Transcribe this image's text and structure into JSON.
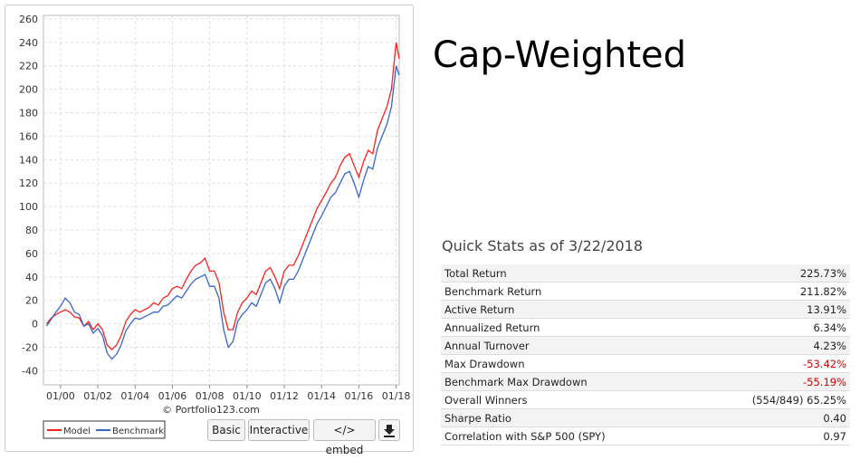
{
  "chart_data": {
    "type": "line",
    "x": [
      "04/99",
      "07/99",
      "10/99",
      "01/00",
      "04/00",
      "07/00",
      "10/00",
      "01/01",
      "04/01",
      "07/01",
      "10/01",
      "01/02",
      "04/02",
      "07/02",
      "10/02",
      "01/03",
      "04/03",
      "07/03",
      "10/03",
      "01/04",
      "04/04",
      "07/04",
      "10/04",
      "01/05",
      "04/05",
      "07/05",
      "10/05",
      "01/06",
      "04/06",
      "07/06",
      "10/06",
      "01/07",
      "04/07",
      "07/07",
      "10/07",
      "01/08",
      "04/08",
      "07/08",
      "10/08",
      "01/09",
      "04/09",
      "07/09",
      "10/09",
      "01/10",
      "04/10",
      "07/10",
      "10/10",
      "01/11",
      "04/11",
      "07/11",
      "10/11",
      "01/12",
      "04/12",
      "07/12",
      "10/12",
      "01/13",
      "04/13",
      "07/13",
      "10/13",
      "01/14",
      "04/14",
      "07/14",
      "10/14",
      "01/15",
      "04/15",
      "07/15",
      "10/15",
      "01/16",
      "04/16",
      "07/16",
      "10/16",
      "01/17",
      "04/17",
      "07/17",
      "10/17",
      "01/18",
      "03/18"
    ],
    "series": [
      {
        "name": "Model",
        "color": "#ff2020",
        "values": [
          0,
          5,
          8,
          10,
          12,
          10,
          6,
          5,
          -2,
          2,
          -5,
          0,
          -5,
          -18,
          -22,
          -18,
          -10,
          2,
          8,
          12,
          10,
          12,
          14,
          18,
          16,
          22,
          24,
          30,
          32,
          30,
          38,
          45,
          50,
          52,
          56,
          45,
          45,
          35,
          10,
          -5,
          -5,
          10,
          18,
          22,
          28,
          25,
          35,
          45,
          48,
          40,
          30,
          45,
          50,
          50,
          58,
          68,
          78,
          88,
          98,
          105,
          112,
          120,
          125,
          135,
          142,
          145,
          135,
          125,
          138,
          148,
          145,
          165,
          175,
          185,
          200,
          240,
          226
        ]
      },
      {
        "name": "Benchmark",
        "color": "#3a66c8",
        "values": [
          -2,
          4,
          10,
          15,
          22,
          18,
          10,
          8,
          -2,
          0,
          -8,
          -4,
          -10,
          -25,
          -30,
          -26,
          -18,
          -6,
          0,
          5,
          4,
          6,
          8,
          10,
          10,
          15,
          16,
          20,
          24,
          22,
          28,
          34,
          38,
          40,
          42,
          32,
          32,
          22,
          -5,
          -20,
          -15,
          2,
          8,
          12,
          18,
          15,
          25,
          35,
          38,
          30,
          18,
          32,
          38,
          38,
          45,
          55,
          65,
          75,
          85,
          92,
          100,
          108,
          112,
          120,
          128,
          130,
          120,
          108,
          122,
          134,
          132,
          150,
          160,
          170,
          185,
          220,
          212
        ]
      }
    ],
    "xticks": [
      "01/00",
      "01/02",
      "01/04",
      "01/06",
      "01/08",
      "01/10",
      "01/12",
      "01/14",
      "01/16",
      "01/18"
    ],
    "xlim": [
      "02/99",
      "03/18"
    ],
    "ylim": [
      -52,
      263
    ],
    "yticks": [
      -40,
      -20,
      0,
      20,
      40,
      60,
      80,
      100,
      120,
      140,
      160,
      180,
      200,
      220,
      240,
      260
    ],
    "grid": true,
    "credit": "© Portfolio123.com"
  },
  "buttons": [
    "Basic",
    "Interactive",
    "</> embed"
  ],
  "heading": "Cap-Weighted",
  "stats": {
    "title": "Quick Stats as of 3/22/2018",
    "rows": [
      [
        "Total Return",
        "225.73%"
      ],
      [
        "Benchmark Return",
        "211.82%"
      ],
      [
        "Active Return",
        "13.91%"
      ],
      [
        "Annualized Return",
        "6.34%"
      ],
      [
        "Annual Turnover",
        "4.23%"
      ],
      [
        "Max Drawdown",
        "-53.42%"
      ],
      [
        "Benchmark Max Drawdown",
        "-55.19%"
      ],
      [
        "Overall Winners",
        "(554/849) 65.25%"
      ],
      [
        "Sharpe Ratio",
        "0.40"
      ],
      [
        "Correlation with S&P 500 (SPY)",
        "0.97"
      ]
    ]
  }
}
